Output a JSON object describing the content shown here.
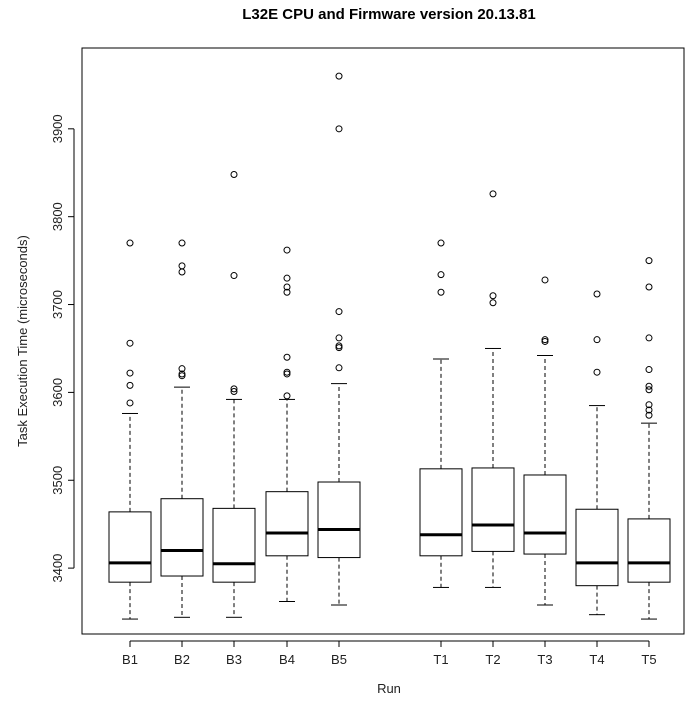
{
  "chart_data": {
    "type": "box",
    "title": "L32E CPU and Firmware version 20.13.81",
    "xlabel": "Run",
    "ylabel": "Task Execution Time (microseconds)",
    "ylim": [
      3325,
      3992
    ],
    "yticks": [
      3400,
      3500,
      3600,
      3700,
      3800,
      3900
    ],
    "grid": false,
    "categories": [
      "B1",
      "B2",
      "B3",
      "B4",
      "B5",
      "T1",
      "T2",
      "T3",
      "T4",
      "T5"
    ],
    "boxes": [
      {
        "label": "B1",
        "whisker_low": 3342,
        "q1": 3384,
        "median": 3406,
        "q3": 3464,
        "whisker_high": 3576,
        "outliers": [
          3588,
          3608,
          3622,
          3656,
          3770
        ]
      },
      {
        "label": "B2",
        "whisker_low": 3344,
        "q1": 3391,
        "median": 3420,
        "q3": 3479,
        "whisker_high": 3606,
        "outliers": [
          3619,
          3621,
          3627,
          3737,
          3744,
          3770
        ]
      },
      {
        "label": "B3",
        "whisker_low": 3344,
        "q1": 3384,
        "median": 3405,
        "q3": 3468,
        "whisker_high": 3592,
        "outliers": [
          3601,
          3604,
          3733,
          3848
        ]
      },
      {
        "label": "B4",
        "whisker_low": 3362,
        "q1": 3414,
        "median": 3440,
        "q3": 3487,
        "whisker_high": 3592,
        "outliers": [
          3596,
          3621,
          3623,
          3640,
          3714,
          3720,
          3730,
          3762
        ]
      },
      {
        "label": "B5",
        "whisker_low": 3358,
        "q1": 3412,
        "median": 3444,
        "q3": 3498,
        "whisker_high": 3610,
        "outliers": [
          3628,
          3651,
          3653,
          3662,
          3692,
          3900,
          3960
        ]
      },
      {
        "label": "T1",
        "whisker_low": 3378,
        "q1": 3414,
        "median": 3438,
        "q3": 3513,
        "whisker_high": 3638,
        "outliers": [
          3714,
          3734,
          3770
        ]
      },
      {
        "label": "T2",
        "whisker_low": 3378,
        "q1": 3419,
        "median": 3449,
        "q3": 3514,
        "whisker_high": 3650,
        "outliers": [
          3702,
          3710,
          3826
        ]
      },
      {
        "label": "T3",
        "whisker_low": 3358,
        "q1": 3416,
        "median": 3440,
        "q3": 3506,
        "whisker_high": 3642,
        "outliers": [
          3658,
          3660,
          3728
        ]
      },
      {
        "label": "T4",
        "whisker_low": 3347,
        "q1": 3380,
        "median": 3406,
        "q3": 3467,
        "whisker_high": 3585,
        "outliers": [
          3623,
          3660,
          3712
        ]
      },
      {
        "label": "T5",
        "whisker_low": 3342,
        "q1": 3384,
        "median": 3406,
        "q3": 3456,
        "whisker_high": 3565,
        "outliers": [
          3574,
          3580,
          3586,
          3603,
          3607,
          3626,
          3662,
          3720,
          3750
        ]
      }
    ]
  }
}
